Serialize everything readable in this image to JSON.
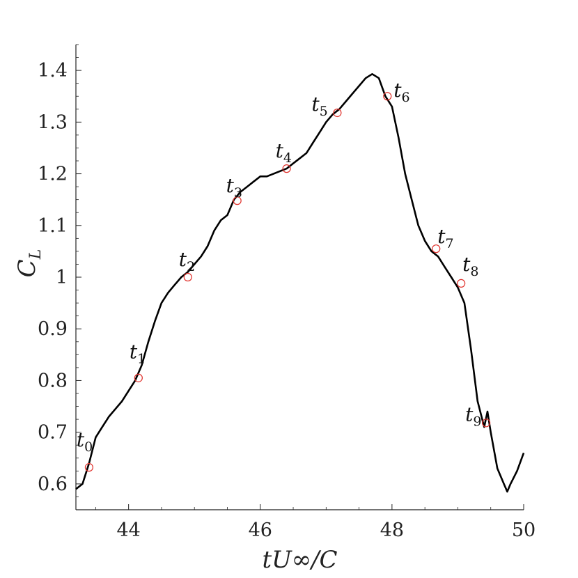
{
  "chart_data": {
    "type": "line",
    "title": "",
    "xlabel": "tU∞/C",
    "ylabel": "C_L",
    "xlim": [
      43.2,
      50
    ],
    "ylim": [
      0.55,
      1.45
    ],
    "x_ticks": [
      44,
      46,
      48,
      50
    ],
    "x_tick_labels": [
      "44",
      "46",
      "48",
      "50"
    ],
    "y_ticks": [
      0.6,
      0.7,
      0.8,
      0.9,
      1.0,
      1.1,
      1.2,
      1.3,
      1.4
    ],
    "y_tick_labels": [
      "0.6",
      "0.7",
      "0.8",
      "0.9",
      "1",
      "1.1",
      "1.2",
      "1.3",
      "1.4"
    ],
    "grid": false,
    "line_color": "#000000",
    "marker_color": "#e0302a",
    "series": [
      {
        "x": [
          43.2,
          43.3,
          43.4,
          43.5,
          43.6,
          43.7,
          43.8,
          43.9,
          44.0,
          44.1,
          44.2,
          44.3,
          44.4,
          44.5,
          44.6,
          44.7,
          44.8,
          44.9,
          45.0,
          45.1,
          45.2,
          45.3,
          45.4,
          45.5,
          45.6,
          45.7,
          45.8,
          45.9,
          46.0,
          46.1,
          46.2,
          46.3,
          46.4,
          46.5,
          46.6,
          46.7,
          46.8,
          46.9,
          47.0,
          47.1,
          47.2,
          47.3,
          47.4,
          47.5,
          47.6,
          47.7,
          47.8,
          47.9,
          48.0,
          48.1,
          48.2,
          48.3,
          48.4,
          48.5,
          48.6,
          48.7,
          48.8,
          48.9,
          49.0,
          49.1,
          49.2,
          49.3,
          49.4,
          49.45,
          49.5,
          49.6,
          49.7,
          49.75,
          49.8,
          49.9,
          50.0
        ],
        "y": [
          0.59,
          0.6,
          0.64,
          0.69,
          0.71,
          0.73,
          0.745,
          0.76,
          0.78,
          0.8,
          0.83,
          0.875,
          0.915,
          0.95,
          0.97,
          0.985,
          1.0,
          1.01,
          1.025,
          1.04,
          1.06,
          1.09,
          1.11,
          1.12,
          1.15,
          1.165,
          1.175,
          1.185,
          1.195,
          1.195,
          1.2,
          1.205,
          1.21,
          1.22,
          1.23,
          1.24,
          1.26,
          1.28,
          1.3,
          1.315,
          1.325,
          1.34,
          1.355,
          1.37,
          1.385,
          1.393,
          1.385,
          1.35,
          1.33,
          1.27,
          1.2,
          1.15,
          1.1,
          1.07,
          1.05,
          1.04,
          1.02,
          1.0,
          0.98,
          0.95,
          0.86,
          0.76,
          0.71,
          0.74,
          0.7,
          0.63,
          0.6,
          0.585,
          0.6,
          0.625,
          0.66
        ]
      }
    ],
    "markers": [
      {
        "label": "t",
        "sub": "0",
        "x": 43.4,
        "y": 0.632
      },
      {
        "label": "t",
        "sub": "1",
        "x": 44.15,
        "y": 0.805
      },
      {
        "label": "t",
        "sub": "2",
        "x": 44.9,
        "y": 1.0
      },
      {
        "label": "t",
        "sub": "3",
        "x": 45.65,
        "y": 1.148
      },
      {
        "label": "t",
        "sub": "4",
        "x": 46.4,
        "y": 1.21
      },
      {
        "label": "t",
        "sub": "5",
        "x": 47.17,
        "y": 1.318
      },
      {
        "label": "t",
        "sub": "6",
        "x": 47.93,
        "y": 1.35
      },
      {
        "label": "t",
        "sub": "7",
        "x": 48.67,
        "y": 1.055
      },
      {
        "label": "t",
        "sub": "8",
        "x": 49.05,
        "y": 0.988
      },
      {
        "label": "t",
        "sub": "9",
        "x": 49.43,
        "y": 0.718
      }
    ]
  }
}
